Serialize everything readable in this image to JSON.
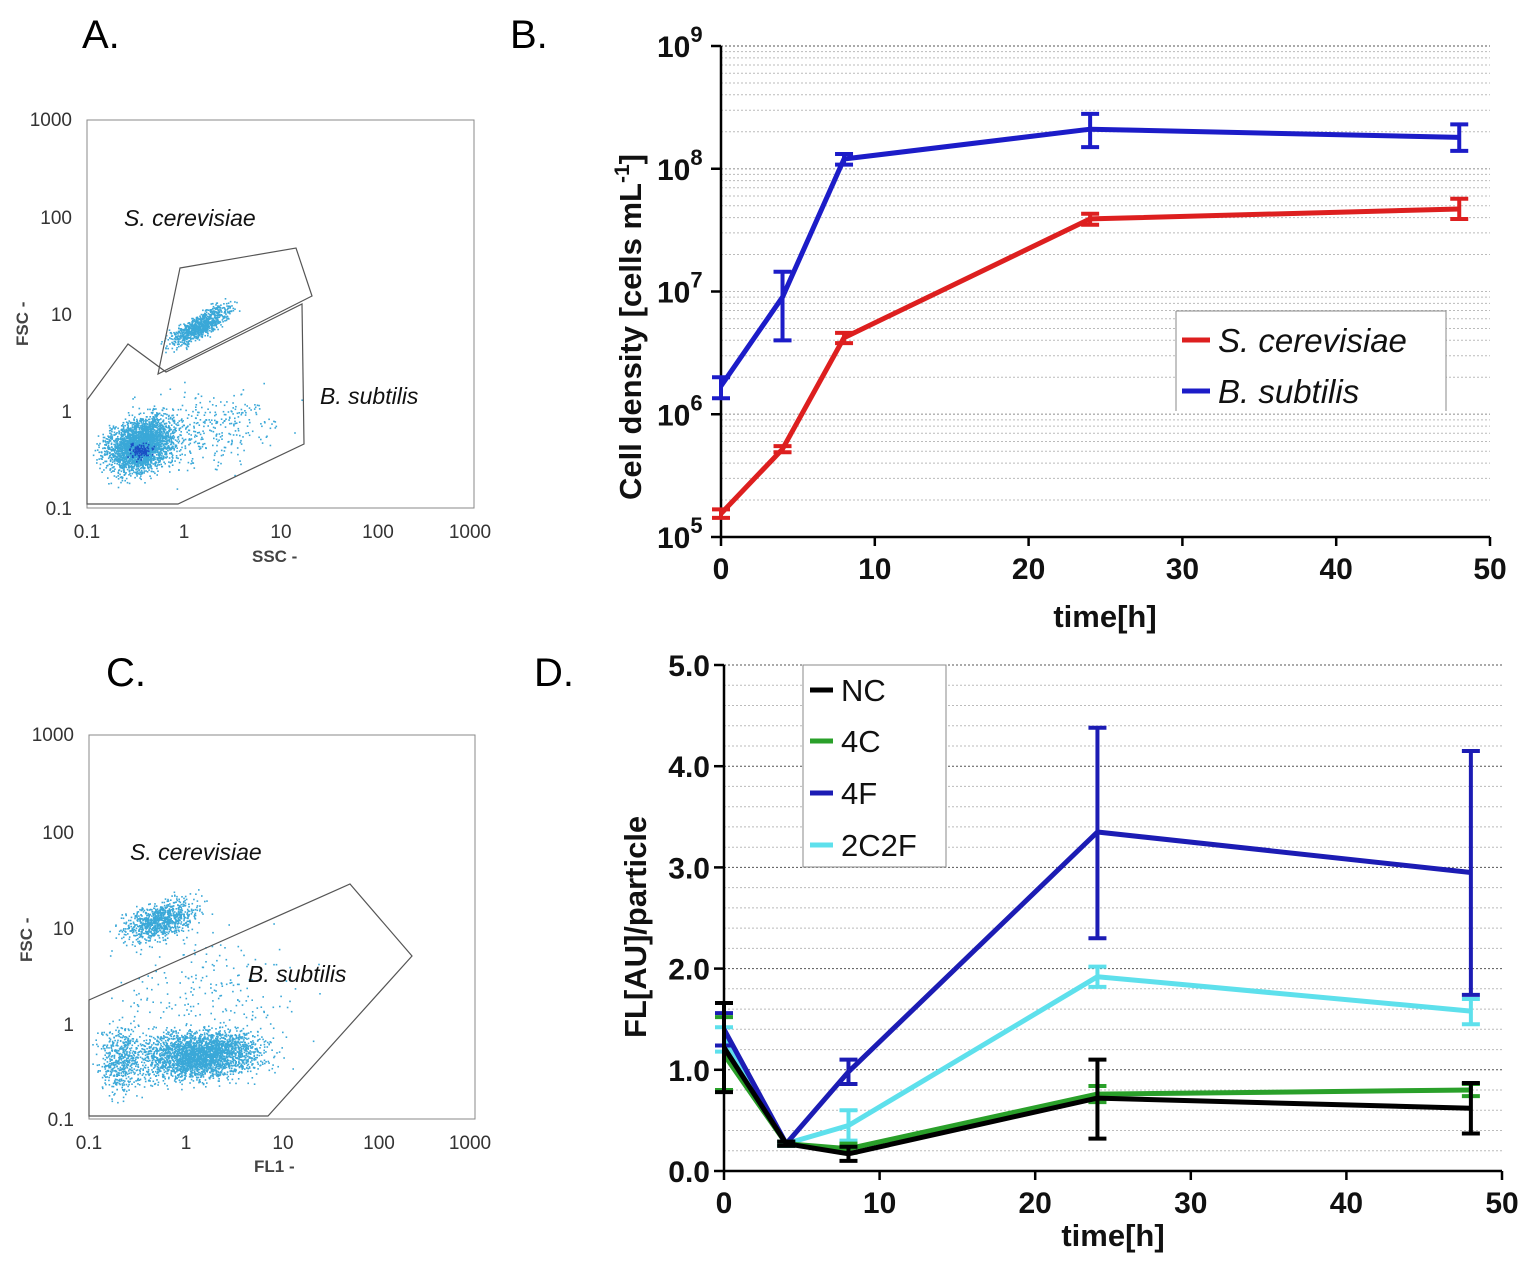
{
  "panels": {
    "a": {
      "label": "A.",
      "x_label": "SSC -",
      "y_label": "FSC -",
      "ticks": [
        "0.1",
        "1",
        "10",
        "100",
        "1000"
      ],
      "gates": [
        "S. cerevisiae",
        "B. subtilis"
      ],
      "dot_color": "#3aa8d8"
    },
    "b": {
      "label": "B."
    },
    "c": {
      "label": "C.",
      "x_label": "FL1 -",
      "y_label": "FSC -",
      "ticks": [
        "0.1",
        "1",
        "10",
        "100",
        "1000"
      ],
      "gates": [
        "S. cerevisiae",
        "B. subtilis"
      ],
      "dot_color": "#3aa8d8"
    },
    "d": {
      "label": "D."
    }
  },
  "chart_data": [
    {
      "type": "line",
      "panel": "B.",
      "xlabel": "time[h]",
      "ylabel": "Cell density [cells mL-1]",
      "ylabel_parts": {
        "main": "Cell density [cells mL",
        "sup": "-1",
        "tail": "]"
      },
      "yscale": "log",
      "xlim": [
        0,
        50
      ],
      "ylim": [
        100000,
        1000000000
      ],
      "x_ticks": [
        "0",
        "10",
        "20",
        "30",
        "40",
        "50"
      ],
      "y_ticks": [
        {
          "base": "10",
          "exp": "5",
          "value": 100000
        },
        {
          "base": "10",
          "exp": "6",
          "value": 1000000
        },
        {
          "base": "10",
          "exp": "7",
          "value": 10000000
        },
        {
          "base": "10",
          "exp": "8",
          "value": 100000000
        },
        {
          "base": "10",
          "exp": "9",
          "value": 1000000000
        }
      ],
      "grid": true,
      "legend_position": "center-right",
      "series": [
        {
          "name": "S. cerevisiae",
          "color": "#dd1f1f",
          "x": [
            0,
            4,
            8,
            24,
            48
          ],
          "y": [
            155000,
            520000,
            4200000,
            39000000,
            47000000
          ],
          "err_low": [
            143000,
            490000,
            3800000,
            35000000,
            39000000
          ],
          "err_high": [
            168000,
            550000,
            4600000,
            43000000,
            57000000
          ]
        },
        {
          "name": "B. subtilis",
          "color": "#1c1cc8",
          "x": [
            0,
            4,
            8,
            24,
            48
          ],
          "y": [
            1700000,
            9000000,
            120000000,
            210000000,
            180000000
          ],
          "err_low": [
            1350000,
            4000000,
            108000000,
            150000000,
            140000000
          ],
          "err_high": [
            2000000,
            14500000,
            132000000,
            280000000,
            230000000
          ]
        }
      ]
    },
    {
      "type": "line",
      "panel": "D.",
      "xlabel": "time[h]",
      "ylabel": "FL[AU]/particle",
      "xlim": [
        0,
        50
      ],
      "ylim": [
        0,
        5
      ],
      "x_ticks": [
        "0",
        "10",
        "20",
        "30",
        "40",
        "50"
      ],
      "y_ticks": [
        "0.0",
        "1.0",
        "2.0",
        "3.0",
        "4.0",
        "5.0"
      ],
      "grid": true,
      "legend_position": "top-left",
      "series": [
        {
          "name": "NC",
          "color": "#000000",
          "x": [
            0,
            4,
            8,
            24,
            48
          ],
          "y": [
            1.22,
            0.27,
            0.17,
            0.72,
            0.62
          ],
          "err_low": [
            0.78,
            0.25,
            0.1,
            0.32,
            0.37
          ],
          "err_high": [
            1.66,
            0.29,
            0.24,
            1.1,
            0.87
          ]
        },
        {
          "name": "4C",
          "color": "#2aa02a",
          "x": [
            0,
            4,
            8,
            24,
            48
          ],
          "y": [
            1.15,
            0.27,
            0.22,
            0.76,
            0.8
          ],
          "err_low": [
            0.8,
            0.25,
            0.18,
            0.68,
            0.74
          ],
          "err_high": [
            1.52,
            0.29,
            0.27,
            0.84,
            0.86
          ]
        },
        {
          "name": "4F",
          "color": "#1c1cb4",
          "x": [
            0,
            4,
            8,
            24,
            48
          ],
          "y": [
            1.4,
            0.27,
            0.98,
            3.35,
            2.95
          ],
          "err_low": [
            1.24,
            0.25,
            0.86,
            2.3,
            1.74
          ],
          "err_high": [
            1.56,
            0.29,
            1.1,
            4.38,
            4.15
          ]
        },
        {
          "name": "2C2F",
          "color": "#5ee0ec",
          "x": [
            0,
            4,
            8,
            24,
            48
          ],
          "y": [
            1.3,
            0.27,
            0.45,
            1.92,
            1.58
          ],
          "err_low": [
            1.18,
            0.25,
            0.3,
            1.82,
            1.45
          ],
          "err_high": [
            1.42,
            0.29,
            0.6,
            2.02,
            1.7
          ]
        }
      ]
    }
  ]
}
